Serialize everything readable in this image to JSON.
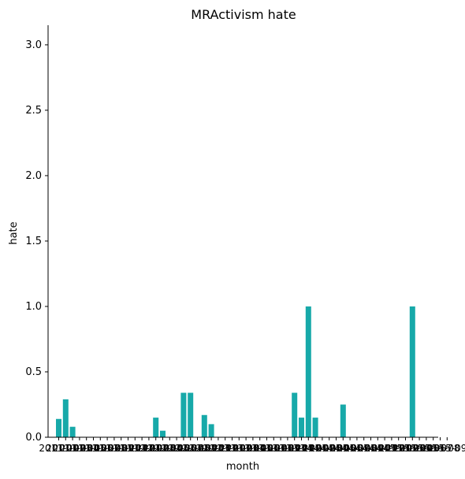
{
  "chart_data": {
    "type": "bar",
    "title": "MRActivism hate",
    "xlabel": "month",
    "ylabel": "hate",
    "ylim": [
      0,
      3.15
    ],
    "yticks": [
      "0.0",
      "0.5",
      "1.0",
      "1.5",
      "2.0",
      "2.5",
      "3.0"
    ],
    "bar_color": "#17a9a9",
    "grid": false,
    "legend": "none",
    "categories": [
      "2011-01",
      "2011-02",
      "2011-03",
      "2011-04",
      "2011-05",
      "2011-06",
      "2011-07",
      "2011-08",
      "2011-09",
      "2011-10",
      "2011-11",
      "2011-12",
      "2012-01",
      "2012-02",
      "2012-03",
      "2012-04",
      "2012-05",
      "2012-06",
      "2012-07",
      "2012-08",
      "2012-09",
      "2012-10",
      "2012-11",
      "2012-12",
      "2013-01",
      "2013-02",
      "2013-03",
      "2013-04",
      "2013-05",
      "2013-06",
      "2013-07",
      "2013-08",
      "2013-09",
      "2013-10",
      "2013-11",
      "2013-12",
      "2014-01",
      "2014-02",
      "2014-03",
      "2014-04",
      "2014-05",
      "2014-06",
      "2014-07",
      "2014-08",
      "2014-09",
      "2014-10",
      "2014-11",
      "2014-12",
      "2015-01",
      "2015-02",
      "2015-03",
      "2015-04",
      "2015-05",
      "2015-06",
      "2015-07",
      "2015-08",
      "2015-09"
    ],
    "values": [
      0.14,
      0.29,
      0.08,
      0,
      0,
      0,
      0,
      0,
      0,
      0,
      0,
      0,
      0,
      0,
      0.15,
      0.05,
      0,
      0,
      0.34,
      0.34,
      0,
      0.17,
      0.1,
      0,
      0,
      0,
      0,
      0,
      0,
      0,
      0,
      0,
      0,
      0,
      0.34,
      0.15,
      1.0,
      0.15,
      0,
      0,
      0,
      0.25,
      0,
      0,
      0,
      0,
      0,
      0,
      0,
      0,
      0,
      1.0,
      0,
      0,
      0,
      0,
      0
    ]
  }
}
